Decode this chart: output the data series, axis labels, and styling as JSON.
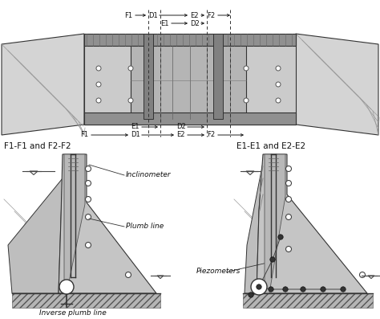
{
  "bg_color": "#ffffff",
  "gray_light": "#c8c8c8",
  "gray_mid": "#b0b0b0",
  "gray_dark": "#888888",
  "edge_color": "#333333",
  "section_labels": [
    "F1-F1 and F2-F2",
    "E1-E1 and E2-E2"
  ],
  "top_dim_row1": [
    [
      "F1",
      155,
      200
    ],
    [
      "D1",
      200,
      237
    ],
    [
      "E2",
      237,
      258
    ],
    [
      "F2",
      258,
      297
    ]
  ],
  "top_dim_row2": [
    [
      "E1",
      200,
      230
    ],
    [
      "D2",
      230,
      258
    ]
  ],
  "bot_dim_row1": [
    [
      "E1",
      168,
      210
    ],
    [
      "D2",
      225,
      258
    ]
  ],
  "bot_dim_row2": [
    [
      "F1",
      105,
      168
    ],
    [
      "D1",
      168,
      225
    ],
    [
      "E2",
      225,
      258
    ],
    [
      "F2",
      258,
      310
    ]
  ]
}
